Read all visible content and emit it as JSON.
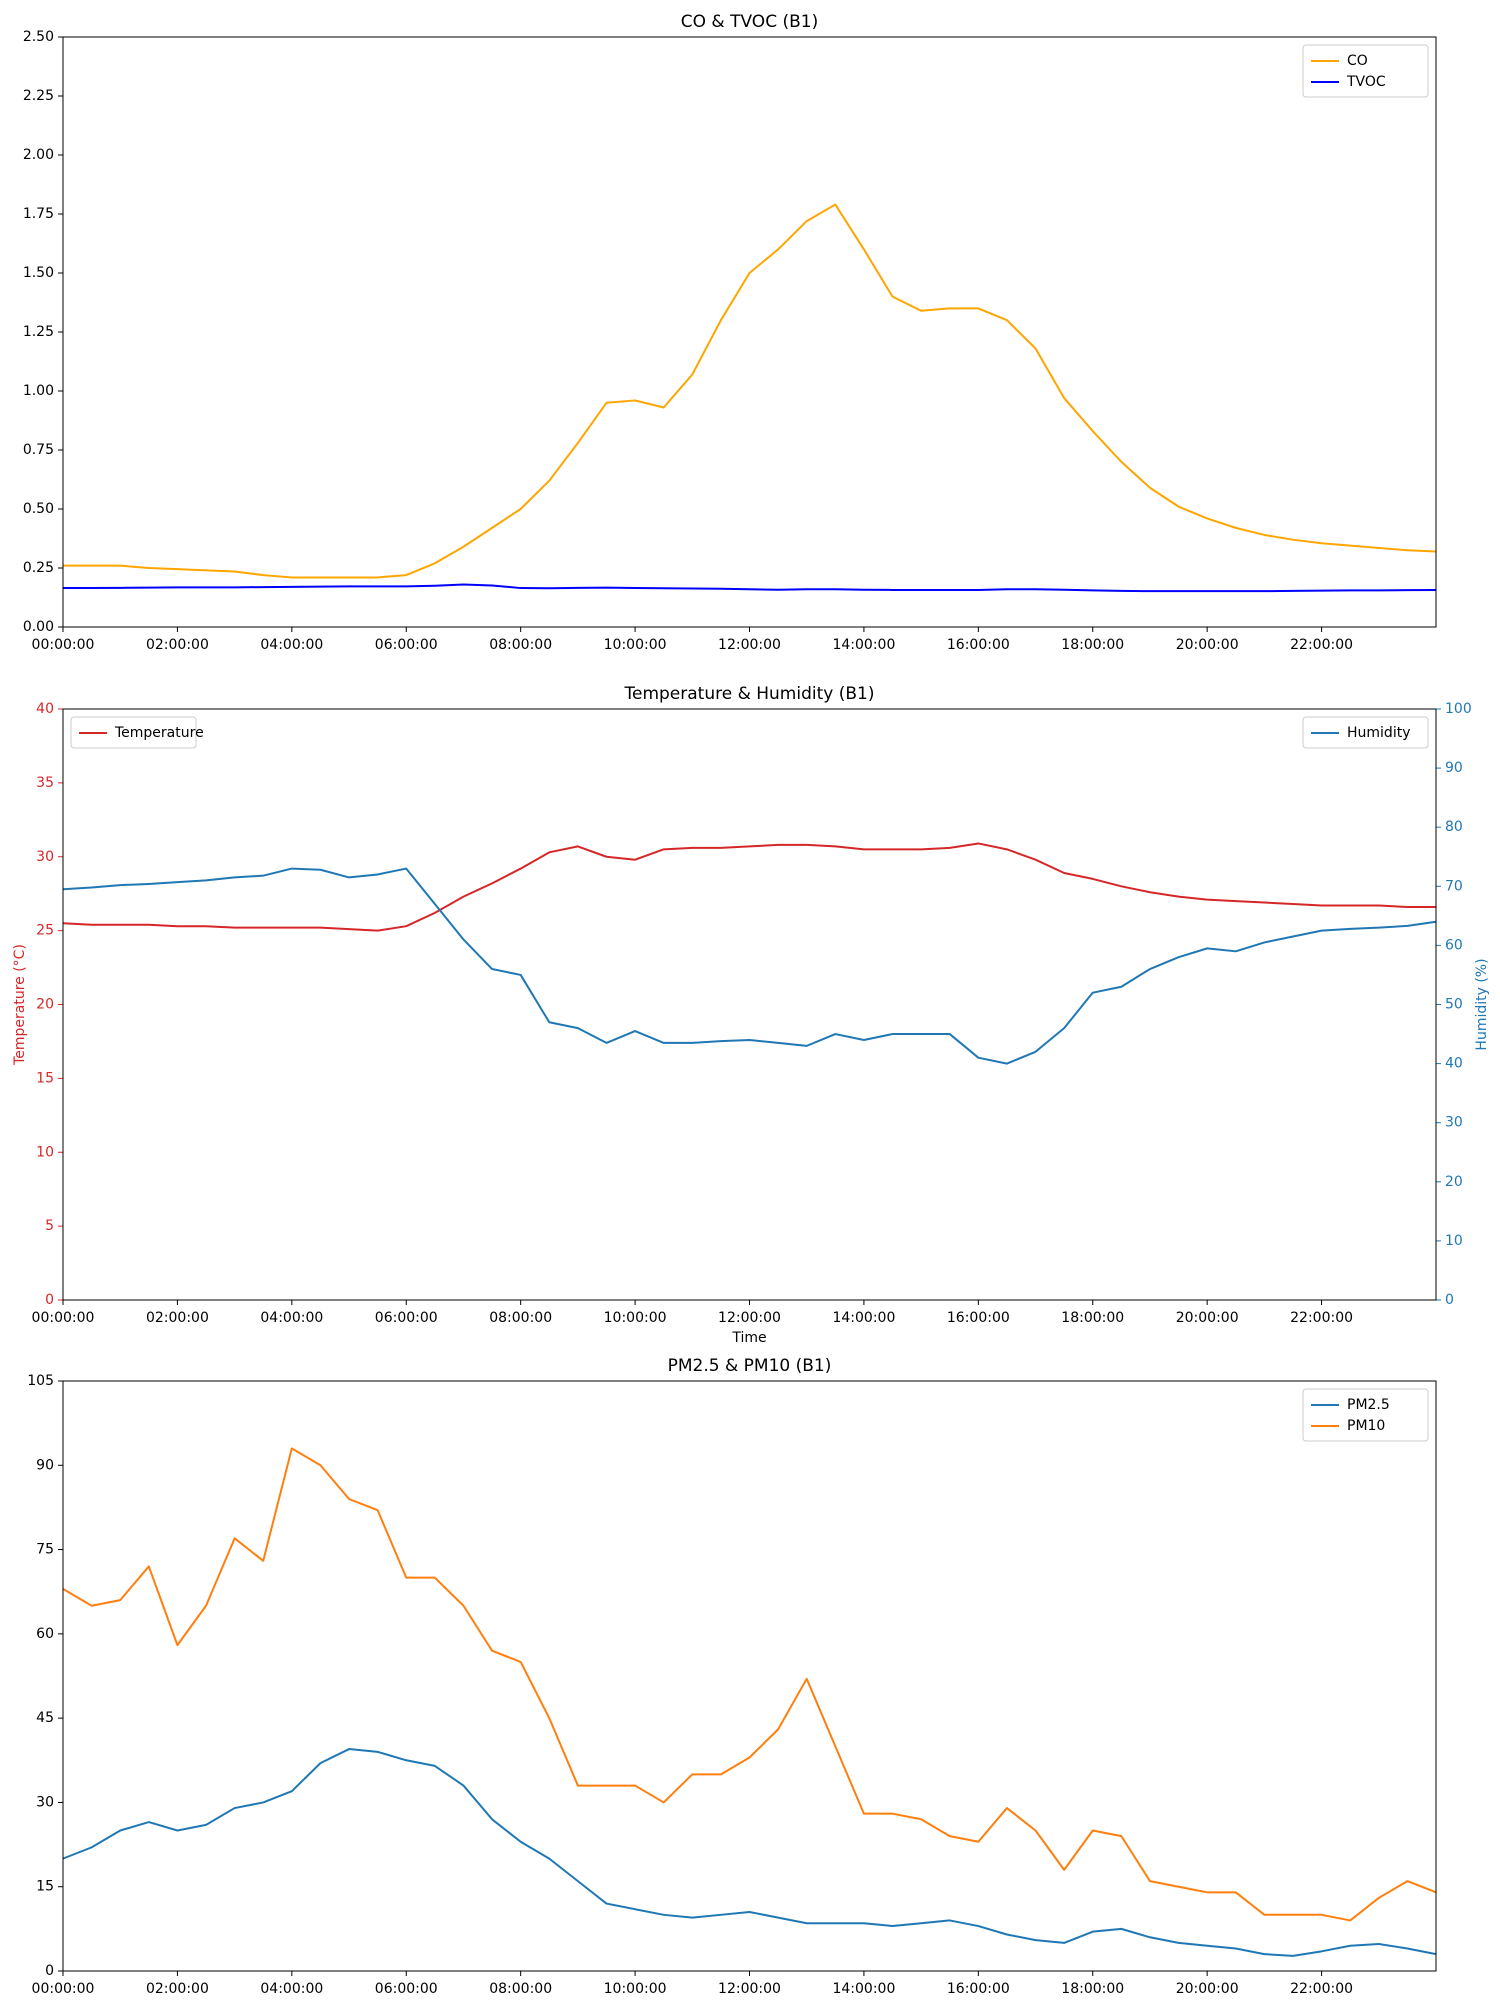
{
  "chart_data": [
    {
      "type": "line",
      "title": "CO & TVOC (B1)",
      "legend": "upper right",
      "xlim": [
        0,
        24
      ],
      "xticks": [
        {
          "value": 0,
          "label": "00:00:00"
        },
        {
          "value": 2,
          "label": "02:00:00"
        },
        {
          "value": 4,
          "label": "04:00:00"
        },
        {
          "value": 6,
          "label": "06:00:00"
        },
        {
          "value": 8,
          "label": "08:00:00"
        },
        {
          "value": 10,
          "label": "10:00:00"
        },
        {
          "value": 12,
          "label": "12:00:00"
        },
        {
          "value": 14,
          "label": "14:00:00"
        },
        {
          "value": 16,
          "label": "16:00:00"
        },
        {
          "value": 18,
          "label": "18:00:00"
        },
        {
          "value": 20,
          "label": "20:00:00"
        },
        {
          "value": 22,
          "label": "22:00:00"
        }
      ],
      "ylim": [
        0,
        2.5
      ],
      "yticks": [
        {
          "value": 0,
          "label": "0.00"
        },
        {
          "value": 0.25,
          "label": "0.25"
        },
        {
          "value": 0.5,
          "label": "0.50"
        },
        {
          "value": 0.75,
          "label": "0.75"
        },
        {
          "value": 1,
          "label": "1.00"
        },
        {
          "value": 1.25,
          "label": "1.25"
        },
        {
          "value": 1.5,
          "label": "1.50"
        },
        {
          "value": 1.75,
          "label": "1.75"
        },
        {
          "value": 2,
          "label": "2.00"
        },
        {
          "value": 2.25,
          "label": "2.25"
        },
        {
          "value": 2.5,
          "label": "2.50"
        }
      ],
      "x": [
        0,
        0.5,
        1,
        1.5,
        2,
        2.5,
        3,
        3.5,
        4,
        4.5,
        5,
        5.5,
        6,
        6.5,
        7,
        7.5,
        8,
        8.5,
        9,
        9.5,
        10,
        10.5,
        11,
        11.5,
        12,
        12.5,
        13,
        13.5,
        14,
        14.5,
        15,
        15.5,
        16,
        16.5,
        17,
        17.5,
        18,
        18.5,
        19,
        19.5,
        20,
        20.5,
        21,
        21.5,
        22,
        22.5,
        23,
        23.5,
        24
      ],
      "series": [
        {
          "name": "CO",
          "color": "#ffa500",
          "values": [
            0.26,
            0.26,
            0.26,
            0.25,
            0.245,
            0.24,
            0.235,
            0.22,
            0.21,
            0.21,
            0.21,
            0.21,
            0.22,
            0.27,
            0.34,
            0.42,
            0.5,
            0.62,
            0.78,
            0.95,
            0.96,
            0.93,
            1.07,
            1.3,
            1.5,
            1.6,
            1.72,
            1.79,
            1.6,
            1.4,
            1.34,
            1.35,
            1.35,
            1.3,
            1.18,
            0.97,
            0.83,
            0.7,
            0.59,
            0.51,
            0.46,
            0.42,
            0.39,
            0.37,
            0.355,
            0.345,
            0.335,
            0.325,
            0.32
          ]
        },
        {
          "name": "TVOC",
          "color": "#0000ff",
          "values": [
            0.165,
            0.165,
            0.166,
            0.167,
            0.168,
            0.168,
            0.168,
            0.169,
            0.17,
            0.171,
            0.172,
            0.172,
            0.172,
            0.175,
            0.18,
            0.176,
            0.165,
            0.164,
            0.166,
            0.167,
            0.165,
            0.164,
            0.163,
            0.162,
            0.16,
            0.158,
            0.16,
            0.16,
            0.158,
            0.157,
            0.157,
            0.157,
            0.157,
            0.16,
            0.16,
            0.158,
            0.155,
            0.153,
            0.152,
            0.152,
            0.152,
            0.152,
            0.152,
            0.153,
            0.154,
            0.155,
            0.155,
            0.156,
            0.157
          ]
        }
      ]
    },
    {
      "type": "line",
      "title": "Temperature & Humidity (B1)",
      "xlabel": "Time",
      "ylabel": "Temperature (°C)",
      "y2label": "Humidity (%)",
      "xlim": [
        0,
        24
      ],
      "xticks": [
        {
          "value": 0,
          "label": "00:00:00"
        },
        {
          "value": 2,
          "label": "02:00:00"
        },
        {
          "value": 4,
          "label": "04:00:00"
        },
        {
          "value": 6,
          "label": "06:00:00"
        },
        {
          "value": 8,
          "label": "08:00:00"
        },
        {
          "value": 10,
          "label": "10:00:00"
        },
        {
          "value": 12,
          "label": "12:00:00"
        },
        {
          "value": 14,
          "label": "14:00:00"
        },
        {
          "value": 16,
          "label": "16:00:00"
        },
        {
          "value": 18,
          "label": "18:00:00"
        },
        {
          "value": 20,
          "label": "20:00:00"
        },
        {
          "value": 22,
          "label": "22:00:00"
        }
      ],
      "ylim": [
        0,
        40
      ],
      "yticks": [
        0,
        5,
        10,
        15,
        20,
        25,
        30,
        35,
        40
      ],
      "y2lim": [
        0,
        100
      ],
      "y2ticks": [
        0,
        10,
        20,
        30,
        40,
        50,
        60,
        70,
        80,
        90,
        100
      ],
      "x": [
        0,
        0.5,
        1,
        1.5,
        2,
        2.5,
        3,
        3.5,
        4,
        4.5,
        5,
        5.5,
        6,
        6.5,
        7,
        7.5,
        8,
        8.5,
        9,
        9.5,
        10,
        10.5,
        11,
        11.5,
        12,
        12.5,
        13,
        13.5,
        14,
        14.5,
        15,
        15.5,
        16,
        16.5,
        17,
        17.5,
        18,
        18.5,
        19,
        19.5,
        20,
        20.5,
        21,
        21.5,
        22,
        22.5,
        23,
        23.5,
        24
      ],
      "series": [
        {
          "name": "Temperature",
          "color": "#d62728",
          "legend": "upper left",
          "values": [
            25.5,
            25.4,
            25.4,
            25.4,
            25.3,
            25.3,
            25.2,
            25.2,
            25.2,
            25.2,
            25.1,
            25.0,
            25.3,
            26.2,
            27.3,
            28.2,
            29.2,
            30.3,
            30.7,
            30.0,
            29.8,
            30.5,
            30.6,
            30.6,
            30.7,
            30.8,
            30.8,
            30.7,
            30.5,
            30.5,
            30.5,
            30.6,
            30.9,
            30.5,
            29.8,
            28.9,
            28.5,
            28.0,
            27.6,
            27.3,
            27.1,
            27.0,
            26.9,
            26.8,
            26.7,
            26.7,
            26.7,
            26.6,
            26.6
          ]
        },
        {
          "name": "Humidity",
          "color": "#1f77b4",
          "axis": "y2",
          "legend": "upper right",
          "values": [
            69.5,
            69.8,
            70.2,
            70.4,
            70.7,
            71.0,
            71.5,
            71.8,
            73.0,
            72.8,
            71.5,
            72.0,
            73.0,
            67.0,
            61.0,
            56.0,
            55.0,
            47.0,
            46.0,
            43.5,
            45.5,
            43.5,
            43.5,
            43.8,
            44.0,
            43.5,
            43.0,
            45.0,
            44.0,
            45.0,
            45.0,
            45.0,
            41.0,
            40.0,
            42.0,
            46.0,
            52.0,
            53.0,
            56.0,
            58.0,
            59.5,
            59.0,
            60.5,
            61.5,
            62.5,
            62.8,
            63.0,
            63.3,
            64.0
          ]
        }
      ]
    },
    {
      "type": "line",
      "title": "PM2.5 & PM10 (B1)",
      "legend": "upper right",
      "xlim": [
        0,
        24
      ],
      "xticks": [
        {
          "value": 0,
          "label": "00:00:00"
        },
        {
          "value": 2,
          "label": "02:00:00"
        },
        {
          "value": 4,
          "label": "04:00:00"
        },
        {
          "value": 6,
          "label": "06:00:00"
        },
        {
          "value": 8,
          "label": "08:00:00"
        },
        {
          "value": 10,
          "label": "10:00:00"
        },
        {
          "value": 12,
          "label": "12:00:00"
        },
        {
          "value": 14,
          "label": "14:00:00"
        },
        {
          "value": 16,
          "label": "16:00:00"
        },
        {
          "value": 18,
          "label": "18:00:00"
        },
        {
          "value": 20,
          "label": "20:00:00"
        },
        {
          "value": 22,
          "label": "22:00:00"
        }
      ],
      "ylim": [
        0,
        105
      ],
      "yticks": [
        0,
        15,
        30,
        45,
        60,
        75,
        90,
        105
      ],
      "x": [
        0,
        0.5,
        1,
        1.5,
        2,
        2.5,
        3,
        3.5,
        4,
        4.5,
        5,
        5.5,
        6,
        6.5,
        7,
        7.5,
        8,
        8.5,
        9,
        9.5,
        10,
        10.5,
        11,
        11.5,
        12,
        12.5,
        13,
        13.5,
        14,
        14.5,
        15,
        15.5,
        16,
        16.5,
        17,
        17.5,
        18,
        18.5,
        19,
        19.5,
        20,
        20.5,
        21,
        21.5,
        22,
        22.5,
        23,
        23.5,
        24
      ],
      "series": [
        {
          "name": "PM2.5",
          "color": "#1f77b4",
          "values": [
            20,
            22,
            25,
            26.5,
            25,
            26,
            29,
            30,
            32,
            37,
            39.5,
            39,
            37.5,
            36.5,
            33,
            27,
            23,
            20,
            16,
            12,
            11,
            10,
            9.5,
            10,
            10.5,
            9.5,
            8.5,
            8.5,
            8.5,
            8,
            8.5,
            9,
            8,
            6.5,
            5.5,
            5,
            7,
            7.5,
            6,
            5,
            4.5,
            4,
            3,
            2.7,
            3.5,
            4.5,
            4.8,
            4,
            3
          ]
        },
        {
          "name": "PM10",
          "color": "#ff7f0e",
          "values": [
            68,
            65,
            66,
            72,
            58,
            65,
            77,
            73,
            93,
            90,
            84,
            82,
            70,
            70,
            65,
            57,
            55,
            45,
            33,
            33,
            33,
            30,
            35,
            35,
            38,
            43,
            52,
            40,
            28,
            28,
            27,
            24,
            23,
            29,
            25,
            18,
            25,
            24,
            16,
            15,
            14,
            14,
            10,
            10,
            10,
            9,
            13,
            16,
            14
          ]
        }
      ]
    }
  ]
}
